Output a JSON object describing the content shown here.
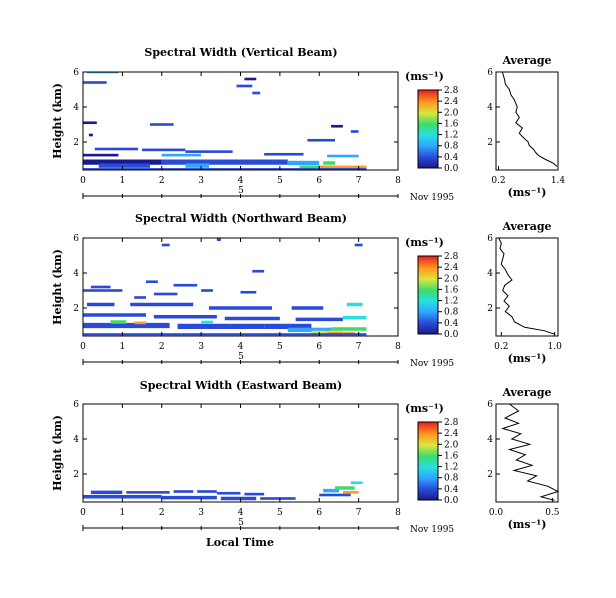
{
  "chart_data": [
    {
      "type": "heatmap",
      "title": "Spectral Width (Vertical Beam)",
      "ylabel": "Height (km)",
      "xlim": [
        0,
        8
      ],
      "ylim": [
        0.4,
        6
      ],
      "xticks": [
        "0",
        "1",
        "2",
        "3",
        "4",
        "5",
        "6",
        "7",
        "8"
      ],
      "yticks": [
        {
          "v": 2,
          "t": "2"
        },
        {
          "v": 4,
          "t": "4"
        },
        {
          "v": 6,
          "t": "6"
        }
      ],
      "date_mark": "5",
      "date_label": "Nov 1995",
      "colorbar": {
        "unit": "(ms⁻¹)",
        "range": [
          0,
          2.8
        ],
        "ticks": [
          "0.0",
          "0.4",
          "0.8",
          "1.2",
          "1.6",
          "2.0",
          "2.4",
          "2.8"
        ]
      },
      "cells": [
        [
          0.1,
          0.9,
          6.0,
          0.9,
          0.15
        ],
        [
          0.0,
          0.6,
          5.4,
          0.6,
          0.15
        ],
        [
          4.1,
          4.4,
          5.6,
          0.3,
          0.15
        ],
        [
          3.9,
          4.3,
          5.2,
          0.7,
          0.15
        ],
        [
          4.3,
          4.5,
          4.8,
          0.5,
          0.15
        ],
        [
          0.0,
          0.35,
          3.1,
          0.25,
          0.15
        ],
        [
          1.7,
          2.3,
          3.0,
          0.6,
          0.15
        ],
        [
          0.15,
          0.25,
          2.4,
          0.3,
          0.15
        ],
        [
          6.3,
          6.6,
          2.9,
          0.2,
          0.15
        ],
        [
          6.8,
          7.0,
          2.6,
          0.4,
          0.15
        ],
        [
          5.7,
          6.4,
          2.1,
          0.4,
          0.15
        ],
        [
          0.3,
          1.4,
          1.6,
          0.5,
          0.15
        ],
        [
          1.5,
          2.6,
          1.55,
          0.4,
          0.15
        ],
        [
          2.6,
          3.8,
          1.45,
          0.5,
          0.15
        ],
        [
          0.0,
          0.9,
          1.25,
          0.3,
          0.15
        ],
        [
          2.0,
          3.0,
          1.25,
          0.9,
          0.15
        ],
        [
          4.6,
          5.6,
          1.3,
          0.4,
          0.15
        ],
        [
          6.2,
          7.0,
          1.2,
          0.8,
          0.15
        ],
        [
          0.0,
          2.0,
          0.85,
          0.3,
          0.3
        ],
        [
          2.0,
          4.0,
          0.85,
          0.4,
          0.3
        ],
        [
          4.0,
          5.2,
          0.85,
          0.5,
          0.3
        ],
        [
          0.4,
          1.7,
          0.65,
          0.7,
          0.25
        ],
        [
          2.6,
          3.2,
          0.65,
          0.9,
          0.25
        ],
        [
          5.2,
          6.0,
          0.8,
          0.9,
          0.25
        ],
        [
          5.5,
          6.4,
          0.55,
          1.8,
          0.2
        ],
        [
          6.0,
          7.2,
          0.55,
          2.6,
          0.2
        ],
        [
          6.1,
          6.4,
          0.8,
          1.6,
          0.2
        ],
        [
          0.0,
          7.2,
          0.45,
          0.4,
          0.12
        ]
      ],
      "average": {
        "title": "Average",
        "xlim": [
          0.15,
          1.4
        ],
        "xticks": [
          {
            "v": 0.2,
            "t": "0.2"
          },
          {
            "v": 1.4,
            "t": "1.4"
          }
        ],
        "xlabel": "(ms⁻¹)",
        "height": [
          6.0,
          5.6,
          5.3,
          5.0,
          4.7,
          4.4,
          4.0,
          3.7,
          3.4,
          3.1,
          2.8,
          2.5,
          2.2,
          2.0,
          1.8,
          1.6,
          1.4,
          1.2,
          1.0,
          0.8,
          0.6
        ],
        "width": [
          0.28,
          0.32,
          0.34,
          0.42,
          0.45,
          0.52,
          0.58,
          0.55,
          0.62,
          0.55,
          0.68,
          0.62,
          0.72,
          0.8,
          0.82,
          0.9,
          0.95,
          1.02,
          1.15,
          1.3,
          1.38
        ]
      }
    },
    {
      "type": "heatmap",
      "title": "Spectral Width (Northward Beam)",
      "ylabel": "Height (km)",
      "xlim": [
        0,
        8
      ],
      "ylim": [
        0.4,
        6
      ],
      "xticks": [
        "0",
        "1",
        "2",
        "3",
        "4",
        "5",
        "6",
        "7",
        "8"
      ],
      "yticks": [
        {
          "v": 2,
          "t": "2"
        },
        {
          "v": 4,
          "t": "4"
        },
        {
          "v": 6,
          "t": "6"
        }
      ],
      "date_mark": "5",
      "date_label": "Nov 1995",
      "colorbar": {
        "unit": "(ms⁻¹)",
        "range": [
          0,
          2.8
        ],
        "ticks": [
          "0.0",
          "0.4",
          "0.8",
          "1.2",
          "1.6",
          "2.0",
          "2.4",
          "2.8"
        ]
      },
      "cells": [
        [
          2.0,
          2.2,
          5.6,
          0.5,
          0.15
        ],
        [
          3.4,
          3.5,
          5.9,
          0.5,
          0.15
        ],
        [
          6.9,
          7.1,
          5.6,
          0.6,
          0.15
        ],
        [
          4.3,
          4.6,
          4.1,
          0.5,
          0.15
        ],
        [
          1.6,
          1.9,
          3.5,
          0.4,
          0.15
        ],
        [
          0.2,
          0.7,
          3.2,
          0.5,
          0.15
        ],
        [
          2.3,
          2.9,
          3.3,
          0.5,
          0.15
        ],
        [
          0.0,
          1.0,
          3.0,
          0.5,
          0.15
        ],
        [
          1.3,
          1.6,
          2.6,
          0.5,
          0.15
        ],
        [
          1.8,
          2.4,
          2.8,
          0.5,
          0.15
        ],
        [
          3.0,
          3.3,
          3.0,
          0.7,
          0.15
        ],
        [
          4.0,
          4.4,
          2.9,
          0.6,
          0.15
        ],
        [
          0.1,
          0.8,
          2.2,
          0.4,
          0.2
        ],
        [
          1.2,
          2.8,
          2.2,
          0.5,
          0.2
        ],
        [
          3.2,
          4.8,
          2.0,
          0.4,
          0.2
        ],
        [
          5.3,
          6.1,
          2.0,
          0.5,
          0.2
        ],
        [
          6.7,
          7.1,
          2.2,
          1.2,
          0.2
        ],
        [
          0.0,
          1.6,
          1.6,
          0.5,
          0.2
        ],
        [
          1.8,
          3.4,
          1.5,
          0.4,
          0.2
        ],
        [
          3.6,
          5.0,
          1.4,
          0.5,
          0.2
        ],
        [
          5.4,
          6.6,
          1.35,
          0.4,
          0.2
        ],
        [
          6.6,
          7.2,
          1.45,
          1.4,
          0.2
        ],
        [
          0.0,
          2.2,
          1.0,
          0.4,
          0.3
        ],
        [
          2.4,
          4.6,
          0.95,
          0.5,
          0.3
        ],
        [
          4.6,
          5.8,
          0.95,
          0.6,
          0.3
        ],
        [
          0.7,
          1.1,
          1.2,
          1.6,
          0.2
        ],
        [
          1.3,
          1.6,
          1.15,
          2.6,
          0.15
        ],
        [
          3.0,
          3.3,
          1.2,
          1.2,
          0.15
        ],
        [
          5.2,
          6.3,
          0.75,
          1.0,
          0.25
        ],
        [
          5.8,
          6.6,
          0.6,
          2.2,
          0.2
        ],
        [
          6.2,
          6.9,
          0.55,
          2.7,
          0.15
        ],
        [
          6.3,
          7.2,
          0.8,
          1.8,
          0.2
        ],
        [
          0.0,
          7.2,
          0.5,
          0.4,
          0.12
        ]
      ],
      "average": {
        "title": "Average",
        "xlim": [
          0.12,
          1.05
        ],
        "xticks": [
          {
            "v": 0.2,
            "t": "0.2"
          },
          {
            "v": 1.0,
            "t": "1.0"
          }
        ],
        "xlabel": "(ms⁻¹)",
        "height": [
          6.0,
          5.7,
          5.4,
          5.1,
          4.8,
          4.5,
          4.2,
          3.9,
          3.6,
          3.3,
          3.0,
          2.7,
          2.4,
          2.1,
          1.8,
          1.5,
          1.2,
          0.9,
          0.7,
          0.5
        ],
        "width": [
          0.16,
          0.2,
          0.18,
          0.24,
          0.22,
          0.2,
          0.26,
          0.3,
          0.36,
          0.25,
          0.22,
          0.3,
          0.24,
          0.32,
          0.26,
          0.36,
          0.4,
          0.55,
          0.85,
          1.0
        ]
      }
    },
    {
      "type": "heatmap",
      "title": "Spectral Width (Eastward Beam)",
      "ylabel": "Height (km)",
      "xlim": [
        0,
        8
      ],
      "ylim": [
        0.4,
        6
      ],
      "xticks": [
        "0",
        "1",
        "2",
        "3",
        "4",
        "5",
        "6",
        "7",
        "8"
      ],
      "yticks": [
        {
          "v": 2,
          "t": "2"
        },
        {
          "v": 4,
          "t": "4"
        },
        {
          "v": 6,
          "t": "6"
        }
      ],
      "date_mark": "5",
      "date_label": "Nov 1995",
      "xlabel": "Local Time",
      "colorbar": {
        "unit": "(ms⁻¹)",
        "range": [
          0,
          2.8
        ],
        "ticks": [
          "0.0",
          "0.4",
          "0.8",
          "1.2",
          "1.6",
          "2.0",
          "2.4",
          "2.8"
        ]
      },
      "cells": [
        [
          0.2,
          1.0,
          0.95,
          0.4,
          0.2
        ],
        [
          1.1,
          2.2,
          0.95,
          0.5,
          0.15
        ],
        [
          2.3,
          2.8,
          1.0,
          0.4,
          0.15
        ],
        [
          2.9,
          3.4,
          1.0,
          0.6,
          0.15
        ],
        [
          3.4,
          4.0,
          0.9,
          0.4,
          0.15
        ],
        [
          4.1,
          4.6,
          0.85,
          0.4,
          0.15
        ],
        [
          0.0,
          2.0,
          0.7,
          0.4,
          0.2
        ],
        [
          2.0,
          3.4,
          0.65,
          0.5,
          0.2
        ],
        [
          3.5,
          4.4,
          0.6,
          0.4,
          0.2
        ],
        [
          4.5,
          5.4,
          0.6,
          0.5,
          0.15
        ],
        [
          6.1,
          6.5,
          1.05,
          0.8,
          0.2
        ],
        [
          6.4,
          6.9,
          1.2,
          1.6,
          0.2
        ],
        [
          6.6,
          7.0,
          0.95,
          2.6,
          0.15
        ],
        [
          6.0,
          6.8,
          0.8,
          0.7,
          0.15
        ],
        [
          6.8,
          7.1,
          1.5,
          1.4,
          0.15
        ]
      ],
      "average": {
        "title": "Average",
        "xlim": [
          0.0,
          0.55
        ],
        "xticks": [
          {
            "v": 0.0,
            "t": "0.0"
          },
          {
            "v": 0.5,
            "t": "0.5"
          }
        ],
        "xlabel": "(ms⁻¹)",
        "height": [
          6.0,
          5.6,
          5.2,
          4.9,
          4.6,
          4.3,
          4.0,
          3.7,
          3.4,
          3.1,
          2.8,
          2.5,
          2.2,
          1.9,
          1.6,
          1.3,
          1.0,
          0.7,
          0.5
        ],
        "width": [
          0.12,
          0.2,
          0.08,
          0.2,
          0.06,
          0.22,
          0.14,
          0.3,
          0.12,
          0.26,
          0.18,
          0.32,
          0.16,
          0.36,
          0.28,
          0.46,
          0.55,
          0.4,
          0.52
        ]
      }
    }
  ]
}
